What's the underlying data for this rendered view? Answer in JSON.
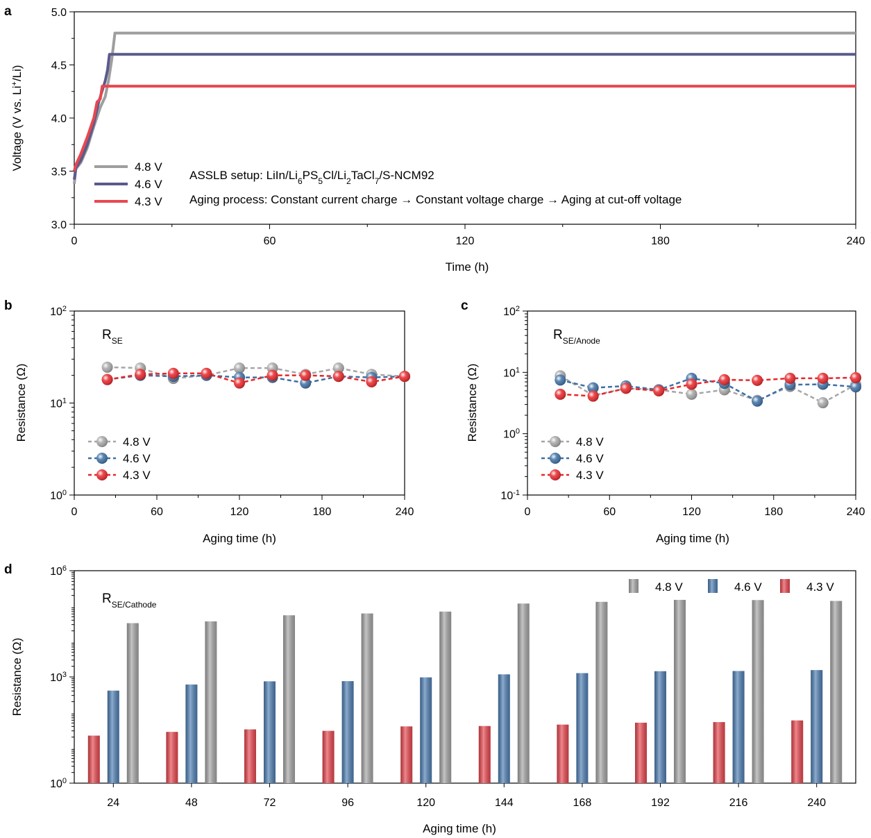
{
  "panel_labels": {
    "a": "a",
    "b": "b",
    "c": "c",
    "d": "d"
  },
  "chart_data": [
    {
      "id": "a",
      "type": "line",
      "xlabel": "Time (h)",
      "ylabel_parts": [
        "Voltage (V vs. Li",
        "+",
        "/Li)"
      ],
      "xlim": [
        0,
        240
      ],
      "ylim": [
        3.0,
        5.0
      ],
      "xticks": [
        "0",
        "60",
        "120",
        "180",
        "240"
      ],
      "yticks": [
        "3.0",
        "3.5",
        "4.0",
        "4.5",
        "5.0"
      ],
      "legend_placement": "bottom-left",
      "series": [
        {
          "name": "4.8 V",
          "color": "#9e9e9e",
          "points": [
            [
              0,
              3.38
            ],
            [
              0.5,
              3.52
            ],
            [
              2,
              3.58
            ],
            [
              4,
              3.72
            ],
            [
              6,
              3.92
            ],
            [
              8,
              4.1
            ],
            [
              9.5,
              4.2
            ],
            [
              10.5,
              4.35
            ],
            [
              11.5,
              4.55
            ],
            [
              12.5,
              4.8
            ],
            [
              240,
              4.8
            ]
          ]
        },
        {
          "name": "4.6 V",
          "color": "#5a5a8c",
          "points": [
            [
              0,
              3.42
            ],
            [
              0.5,
              3.53
            ],
            [
              2,
              3.6
            ],
            [
              4,
              3.75
            ],
            [
              6,
              3.95
            ],
            [
              7.5,
              4.15
            ],
            [
              8.5,
              4.25
            ],
            [
              9.5,
              4.35
            ],
            [
              10.2,
              4.45
            ],
            [
              10.8,
              4.6
            ],
            [
              240,
              4.6
            ]
          ]
        },
        {
          "name": "4.3 V",
          "color": "#e8474f",
          "points": [
            [
              0,
              3.5
            ],
            [
              0.5,
              3.56
            ],
            [
              2,
              3.66
            ],
            [
              4,
              3.82
            ],
            [
              6,
              4.0
            ],
            [
              7,
              4.15
            ],
            [
              8,
              4.18
            ],
            [
              8.6,
              4.3
            ],
            [
              240,
              4.3
            ]
          ]
        }
      ],
      "annotation_setup": {
        "text": "ASSLB setup: LiIn/Li",
        "sub1": "6",
        "t2": "PS",
        "sub2": "5",
        "t3": "Cl/Li",
        "sub3": "2",
        "t4": "TaCl",
        "sub4": "7",
        "t5": "/S-NCM92"
      },
      "annotation_aging": "Aging process: Constant current charge → Constant voltage charge → Aging at cut-off voltage"
    },
    {
      "id": "b",
      "type": "scatter",
      "label_main": "R",
      "label_sub": "SE",
      "xlabel": "Aging time (h)",
      "ylabel": "Resistance (Ω)",
      "xlim": [
        0,
        240
      ],
      "ylim": [
        1,
        100
      ],
      "log_y": true,
      "xticks": [
        "0",
        "60",
        "120",
        "180",
        "240"
      ],
      "yticks": [
        {
          "base": "10",
          "exp": "0"
        },
        {
          "base": "10",
          "exp": "1"
        },
        {
          "base": "10",
          "exp": "2"
        }
      ],
      "legend_placement": "bottom-left",
      "x": [
        24,
        48,
        72,
        96,
        120,
        144,
        168,
        192,
        216,
        240
      ],
      "series": [
        {
          "name": "4.8 V",
          "color": "#a6a6a6",
          "values": [
            24.5,
            24.0,
            18.5,
            20.0,
            24.0,
            24.0,
            20.5,
            24.0,
            20.5,
            19.5
          ]
        },
        {
          "name": "4.6 V",
          "color": "#3d6fa3",
          "values": [
            18.0,
            20.0,
            19.5,
            20.0,
            19.0,
            19.0,
            16.5,
            19.5,
            19.0,
            19.5
          ]
        },
        {
          "name": "4.3 V",
          "color": "#e8262a",
          "values": [
            18.0,
            20.5,
            21.0,
            21.0,
            16.5,
            20.0,
            20.0,
            19.5,
            17.0,
            19.5
          ]
        }
      ]
    },
    {
      "id": "c",
      "type": "scatter",
      "label_main": "R",
      "label_sub": "SE/Anode",
      "xlabel": "Aging time (h)",
      "ylabel": "Resistance (Ω)",
      "xlim": [
        0,
        240
      ],
      "ylim": [
        0.1,
        100
      ],
      "log_y": true,
      "xticks": [
        "0",
        "60",
        "120",
        "180",
        "240"
      ],
      "yticks": [
        {
          "base": "10",
          "exp": "-1"
        },
        {
          "base": "10",
          "exp": "0"
        },
        {
          "base": "10",
          "exp": "1"
        },
        {
          "base": "10",
          "exp": "2"
        }
      ],
      "legend_placement": "bottom-left",
      "x": [
        24,
        48,
        72,
        96,
        120,
        144,
        168,
        192,
        216,
        240
      ],
      "series": [
        {
          "name": "4.8 V",
          "color": "#a6a6a6",
          "values": [
            8.8,
            4.2,
            5.5,
            5.2,
            4.4,
            5.2,
            3.5,
            5.9,
            3.2,
            6.3
          ]
        },
        {
          "name": "4.6 V",
          "color": "#3d6fa3",
          "values": [
            7.5,
            5.6,
            6.0,
            5.2,
            8.0,
            6.6,
            3.4,
            6.3,
            6.4,
            5.8
          ]
        },
        {
          "name": "4.3 V",
          "color": "#e8262a",
          "values": [
            4.4,
            4.1,
            5.5,
            5.0,
            6.4,
            7.6,
            7.4,
            8.0,
            8.0,
            8.2
          ]
        }
      ]
    },
    {
      "id": "d",
      "type": "bar",
      "label_main": "R",
      "label_sub": "SE/Cathode",
      "xlabel": "Aging time (h)",
      "ylabel": "Resistance (Ω)",
      "ylim": [
        1,
        1000000
      ],
      "log_y": true,
      "categories": [
        "24",
        "48",
        "72",
        "96",
        "120",
        "144",
        "168",
        "192",
        "216",
        "240"
      ],
      "yticks": [
        {
          "base": "10",
          "exp": "0"
        },
        {
          "base": "10",
          "exp": "3"
        },
        {
          "base": "10",
          "exp": "6"
        }
      ],
      "legend_placement": "top-right",
      "series": [
        {
          "name": "4.3 V",
          "color": "#e8474f",
          "values": [
            22,
            28,
            33,
            30,
            40,
            41,
            45,
            51,
            53,
            59
          ]
        },
        {
          "name": "4.6 V",
          "color": "#4f7fb4",
          "values": [
            410,
            610,
            750,
            760,
            970,
            1180,
            1280,
            1450,
            1470,
            1560
          ]
        },
        {
          "name": "4.8 V",
          "color": "#a6a6a6",
          "values": [
            33000,
            37000,
            55000,
            62000,
            70000,
            118000,
            132000,
            150000,
            148000,
            140000
          ]
        }
      ]
    }
  ]
}
